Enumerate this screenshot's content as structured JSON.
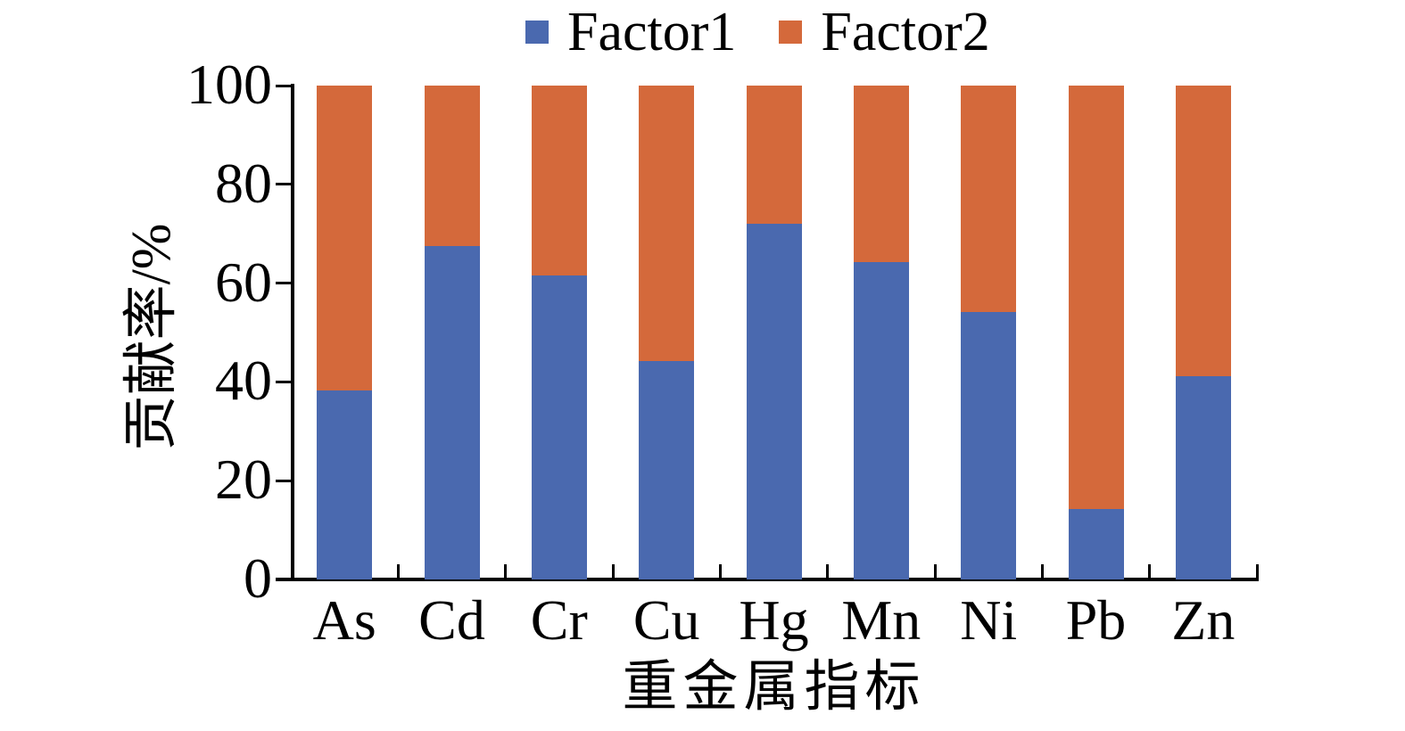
{
  "chart_data": {
    "type": "bar",
    "stacked": true,
    "categories": [
      "As",
      "Cd",
      "Cr",
      "Cu",
      "Hg",
      "Mn",
      "Ni",
      "Pb",
      "Zn"
    ],
    "series": [
      {
        "name": "Factor1",
        "color": "#4a69af",
        "values": [
          38.2,
          67.5,
          61.5,
          44.3,
          72.0,
          64.2,
          54.2,
          14.3,
          41.2
        ]
      },
      {
        "name": "Factor2",
        "color": "#d4693b",
        "values": [
          61.8,
          32.5,
          38.5,
          55.7,
          28.0,
          35.8,
          45.8,
          85.7,
          58.8
        ]
      }
    ],
    "title": "",
    "xlabel": "重金属指标",
    "ylabel": "贡献率/%",
    "ylim": [
      0,
      100
    ],
    "yticks": [
      0,
      20,
      40,
      60,
      80,
      100
    ],
    "legend_position": "top",
    "grid": false,
    "axis_color": "#000000",
    "background_color": "#ffffff"
  }
}
